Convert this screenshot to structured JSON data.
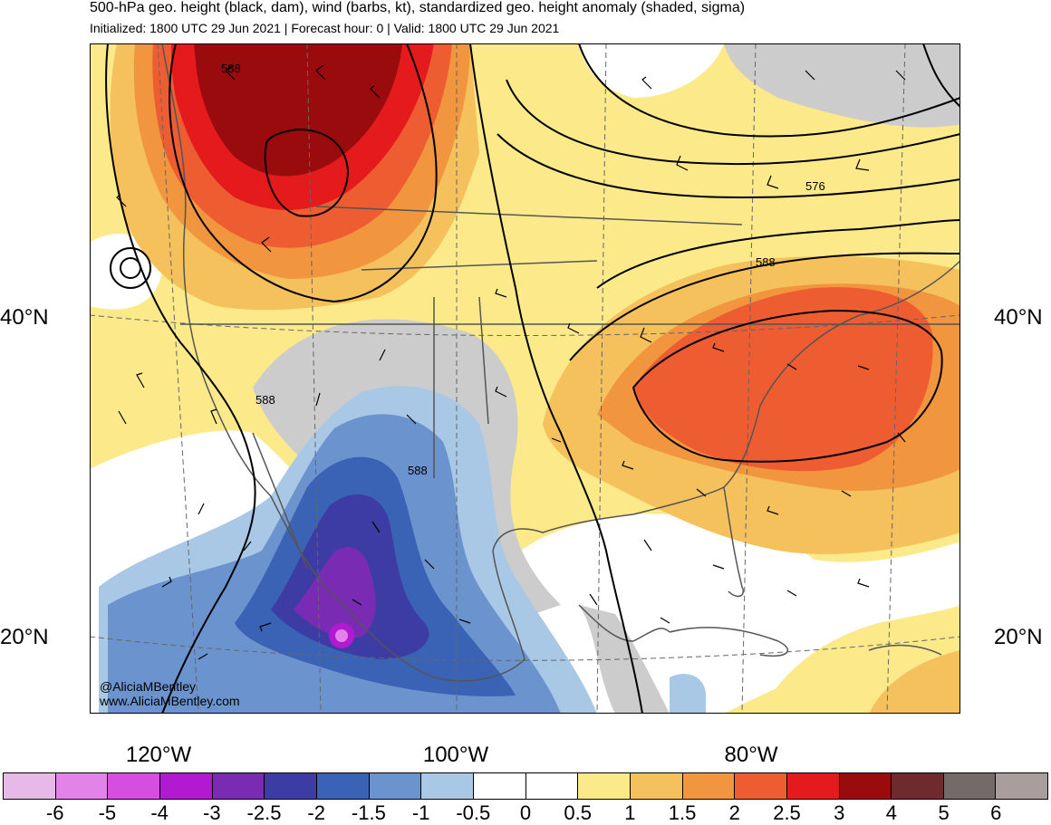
{
  "title": "500-hPa geo. height (black, dam), wind (barbs, kt), standardized geo. height anomaly (shaded, sigma)",
  "subtitle": "Initialized: 1800 UTC 29 Jun 2021 | Forecast hour: 0 | Valid: 1800 UTC 29 Jun 2021",
  "lat_labels": {
    "n40_left": "40°N",
    "n40_right": "40°N",
    "n20_left": "20°N",
    "n20_right": "20°N"
  },
  "lon_labels": {
    "w120": "120°W",
    "w100": "100°W",
    "w80": "80°W"
  },
  "contour_labels": [
    "588",
    "576",
    "588",
    "588",
    "588"
  ],
  "credits": {
    "twitter": "@AliciaMBentley",
    "website": "www.AliciaMBentley.com"
  },
  "colorbar": {
    "labels": [
      "-6",
      "-5",
      "-4",
      "-3",
      "-2.5",
      "-2",
      "-1.5",
      "-1",
      "-0.5",
      "0",
      "0.5",
      "1",
      "1.5",
      "2",
      "2.5",
      "3",
      "4",
      "5",
      "6"
    ],
    "colors": [
      "#e7b9e9",
      "#e183e8",
      "#d64ee0",
      "#b21ad2",
      "#7a2bb4",
      "#3c3ca4",
      "#3a63b6",
      "#6b93cd",
      "#a8c8e6",
      "#ffffff",
      "#ffffff",
      "#fce98a",
      "#f5c15d",
      "#f1953f",
      "#ee5c32",
      "#e41a1c",
      "#9a0b0d",
      "#6e2a2c",
      "#756a6a",
      "#aa9d9d"
    ]
  },
  "shading_colors": {
    "land_gray": "#cccccc",
    "pos05": "#fce98a",
    "pos1": "#f5c15d",
    "pos15": "#f1953f",
    "pos2": "#ee5c32",
    "pos25": "#e41a1c",
    "pos3": "#9a0b0d",
    "neg05": "#a8c8e6",
    "neg1": "#6b93cd",
    "neg15": "#3a63b6",
    "neg2": "#3c3ca4",
    "neg25": "#7a2bb4",
    "neg3": "#b21ad2"
  }
}
